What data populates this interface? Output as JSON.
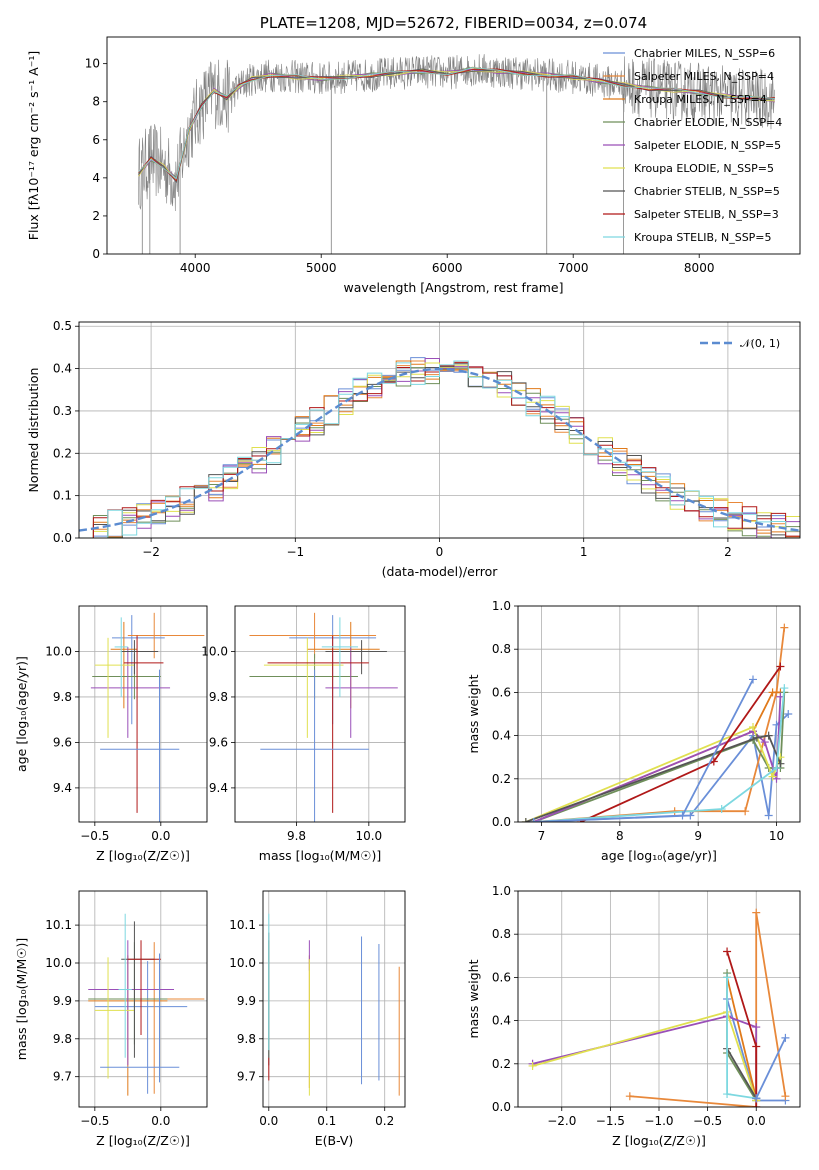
{
  "colors": [
    "#6a8fd8",
    "#e8883a",
    "#e07a1a",
    "#6f8f5a",
    "#9a4fb8",
    "#e0e050",
    "#555555",
    "#b01818",
    "#7dd8e0"
  ],
  "chart_data": [
    {
      "id": "spectrum",
      "type": "line",
      "title": "PLATE=1208, MJD=52672, FIBERID=0034, z=0.074",
      "xlabel": "wavelength [Angstrom, rest frame]",
      "ylabel": "Flux [fλ10⁻¹⁷ erg cm⁻² s⁻¹ A⁻¹]",
      "xlim": [
        3300,
        8800
      ],
      "ylim": [
        0,
        11.4
      ],
      "xticks": [
        "4000",
        "5000",
        "6000",
        "7000",
        "8000"
      ],
      "yticks": [
        "0",
        "2",
        "4",
        "6",
        "8",
        "10"
      ],
      "legend_position": "upper-right",
      "legend": [
        "Chabrier MILES, N_SSP=6",
        "Salpeter MILES, N_SSP=4",
        "Kroupa MILES, N_SSP=4",
        "Chabrier ELODIE, N_SSP=4",
        "Salpeter ELODIE, N_SSP=5",
        "Kroupa ELODIE, N_SSP=5",
        "Chabrier STELIB, N_SSP=5",
        "Salpeter STELIB, N_SSP=3",
        "Kroupa STELIB, N_SSP=5"
      ],
      "data_color": "#808080",
      "model_x": [
        3550,
        3650,
        3750,
        3850,
        3950,
        4050,
        4150,
        4250,
        4350,
        4450,
        4600,
        4800,
        5000,
        5200,
        5400,
        5600,
        5800,
        6000,
        6200,
        6400,
        6600,
        6800,
        7000,
        7200,
        7400,
        7600,
        7800,
        8000,
        8200,
        8400,
        8600
      ],
      "model_y": [
        4.2,
        5.0,
        4.6,
        3.9,
        6.5,
        7.8,
        8.6,
        8.2,
        8.8,
        9.2,
        9.4,
        9.3,
        9.2,
        9.3,
        9.4,
        9.5,
        9.6,
        9.5,
        9.7,
        9.6,
        9.5,
        9.4,
        9.3,
        9.1,
        8.9,
        8.7,
        8.6,
        8.5,
        8.3,
        8.2,
        8.1
      ]
    },
    {
      "id": "residuals",
      "type": "histogram",
      "xlabel": "(data-model)/error",
      "ylabel": "Normed distribution",
      "xlim": [
        -2.5,
        2.5
      ],
      "ylim": [
        0,
        0.51
      ],
      "xticks": [
        "−2",
        "−1",
        "0",
        "1",
        "2"
      ],
      "yticks": [
        "0.0",
        "0.1",
        "0.2",
        "0.3",
        "0.4",
        "0.5"
      ],
      "legend": [
        "𝒩(0, 1)"
      ],
      "reference_curve": "normal(0,1)",
      "bin_width": 0.1
    },
    {
      "id": "age-vs-Z",
      "type": "errorbar",
      "xlabel": "Z [log₁₀(Z/Z☉)]",
      "ylabel": "age  [log₁₀(age/yr)]",
      "xlim": [
        -0.62,
        0.35
      ],
      "ylim": [
        9.25,
        10.2
      ],
      "xticks": [
        "−0.5",
        "0.0"
      ],
      "yticks": [
        "9.4",
        "9.6",
        "9.8",
        "10.0"
      ],
      "points": [
        {
          "x": -0.22,
          "y": 10.06,
          "xerr": [
            0.15,
            0.25
          ],
          "yerr": [
            0.38,
            0.1
          ]
        },
        {
          "x": -0.05,
          "y": 10.07,
          "xerr": [
            0.2,
            0.38
          ],
          "yerr": [
            0.1,
            0.1
          ]
        },
        {
          "x": -0.28,
          "y": 10.01,
          "xerr": [
            0.1,
            0.1
          ],
          "yerr": [
            0.26,
            0.12
          ]
        },
        {
          "x": -0.2,
          "y": 9.89,
          "xerr": [
            0.32,
            0.2
          ],
          "yerr": [
            0.1,
            0.1
          ]
        },
        {
          "x": -0.25,
          "y": 9.84,
          "xerr": [
            0.28,
            0.32
          ],
          "yerr": [
            0.22,
            0.18
          ]
        },
        {
          "x": -0.4,
          "y": 9.94,
          "xerr": [
            0.1,
            0.2
          ],
          "yerr": [
            0.32,
            0.12
          ]
        },
        {
          "x": -0.2,
          "y": 10.0,
          "xerr": [
            0.1,
            0.18
          ],
          "yerr": [
            0.1,
            0.05
          ]
        },
        {
          "x": -0.18,
          "y": 9.95,
          "xerr": [
            0.1,
            0.2
          ],
          "yerr": [
            0.66,
            0.12
          ]
        },
        {
          "x": -0.3,
          "y": 10.02,
          "xerr": [
            0.05,
            0.05
          ],
          "yerr": [
            0.22,
            0.13
          ]
        },
        {
          "x": -0.01,
          "y": 9.57,
          "xerr": [
            0.45,
            0.15
          ],
          "yerr": [
            0.35,
            0.35
          ]
        }
      ]
    },
    {
      "id": "age-vs-mass",
      "type": "errorbar",
      "xlabel": "mass [log₁₀(M/M☉)]",
      "ylabel": "",
      "xlim": [
        9.63,
        10.1
      ],
      "ylim": [
        9.25,
        10.2
      ],
      "xticks": [
        "9.8",
        "10.0"
      ],
      "yticks": [
        "9.4",
        "9.6",
        "9.8",
        "10.0"
      ],
      "points": [
        {
          "x": 9.9,
          "y": 10.06,
          "xerr": [
            0.12,
            0.12
          ],
          "yerr": [
            0.38,
            0.1
          ]
        },
        {
          "x": 9.85,
          "y": 10.07,
          "xerr": [
            0.18,
            0.17
          ],
          "yerr": [
            0.1,
            0.1
          ]
        },
        {
          "x": 9.95,
          "y": 10.01,
          "xerr": [
            0.12,
            0.08
          ],
          "yerr": [
            0.26,
            0.12
          ]
        },
        {
          "x": 9.85,
          "y": 9.89,
          "xerr": [
            0.18,
            0.12
          ],
          "yerr": [
            0.1,
            0.1
          ]
        },
        {
          "x": 9.95,
          "y": 9.84,
          "xerr": [
            0.07,
            0.13
          ],
          "yerr": [
            0.22,
            0.18
          ]
        },
        {
          "x": 9.83,
          "y": 9.94,
          "xerr": [
            0.12,
            0.1
          ],
          "yerr": [
            0.32,
            0.12
          ]
        },
        {
          "x": 9.98,
          "y": 10.0,
          "xerr": [
            0.1,
            0.07
          ],
          "yerr": [
            0.1,
            0.05
          ]
        },
        {
          "x": 9.9,
          "y": 9.95,
          "xerr": [
            0.18,
            0.1
          ],
          "yerr": [
            0.66,
            0.12
          ]
        },
        {
          "x": 9.92,
          "y": 10.02,
          "xerr": [
            0.05,
            0.05
          ],
          "yerr": [
            0.22,
            0.13
          ]
        },
        {
          "x": 9.85,
          "y": 9.57,
          "xerr": [
            0.15,
            0.15
          ],
          "yerr": [
            0.35,
            0.35
          ]
        }
      ]
    },
    {
      "id": "massweight-vs-age",
      "type": "line",
      "xlabel": "age  [log₁₀(age/yr)]",
      "ylabel": "mass weight",
      "xlim": [
        6.7,
        10.3
      ],
      "ylim": [
        0,
        1.0
      ],
      "xticks": [
        "7",
        "8",
        "9",
        "10"
      ],
      "yticks": [
        "0.0",
        "0.2",
        "0.4",
        "0.6",
        "0.8",
        "1.0"
      ],
      "series": [
        {
          "values": [
            [
              6.9,
              0.0
            ],
            [
              8.9,
              0.03
            ],
            [
              9.7,
              0.4
            ],
            [
              9.9,
              0.03
            ],
            [
              10.0,
              0.45
            ],
            [
              10.15,
              0.5
            ]
          ]
        },
        {
          "values": [
            [
              6.9,
              0.0
            ],
            [
              8.7,
              0.05
            ],
            [
              9.6,
              0.05
            ],
            [
              10.0,
              0.6
            ],
            [
              10.1,
              0.9
            ]
          ]
        },
        {
          "values": [
            [
              6.9,
              0.0
            ],
            [
              9.7,
              0.42
            ],
            [
              9.95,
              0.6
            ],
            [
              10.05,
              0.6
            ]
          ]
        },
        {
          "values": [
            [
              6.9,
              0.0
            ],
            [
              9.7,
              0.38
            ],
            [
              9.9,
              0.25
            ],
            [
              10.05,
              0.25
            ],
            [
              10.1,
              0.6
            ]
          ]
        },
        {
          "values": [
            [
              6.9,
              0.0
            ],
            [
              9.7,
              0.42
            ],
            [
              9.85,
              0.37
            ],
            [
              10.0,
              0.2
            ],
            [
              10.05,
              0.58
            ]
          ]
        },
        {
          "values": [
            [
              6.8,
              0.0
            ],
            [
              9.7,
              0.44
            ],
            [
              9.95,
              0.21
            ],
            [
              10.05,
              0.3
            ]
          ]
        },
        {
          "values": [
            [
              6.8,
              0.0
            ],
            [
              9.75,
              0.39
            ],
            [
              9.9,
              0.4
            ],
            [
              10.05,
              0.27
            ]
          ]
        },
        {
          "values": [
            [
              7.5,
              0.0
            ],
            [
              9.2,
              0.28
            ],
            [
              10.05,
              0.72
            ]
          ]
        },
        {
          "values": [
            [
              6.9,
              0.0
            ],
            [
              9.3,
              0.06
            ],
            [
              10.0,
              0.25
            ],
            [
              10.1,
              0.62
            ]
          ]
        },
        {
          "values": [
            [
              6.9,
              0.0
            ],
            [
              8.8,
              0.03
            ],
            [
              9.7,
              0.66
            ]
          ]
        }
      ]
    },
    {
      "id": "mass-vs-Z",
      "type": "errorbar",
      "xlabel": "Z [log₁₀(Z/Z☉)]",
      "ylabel": "mass [log₁₀(M/M☉)]",
      "xlim": [
        -0.62,
        0.35
      ],
      "ylim": [
        9.62,
        10.19
      ],
      "xticks": [
        "−0.5",
        "0.0"
      ],
      "yticks": [
        "9.7",
        "9.8",
        "9.9",
        "10.0",
        "10.1"
      ],
      "points": [
        {
          "x": -0.1,
          "y": 9.885,
          "xerr": [
            0.4,
            0.3
          ],
          "yerr": [
            0.23,
            0.12
          ]
        },
        {
          "x": -0.05,
          "y": 9.905,
          "xerr": [
            0.4,
            0.38
          ],
          "yerr": [
            0.25,
            0.15
          ]
        },
        {
          "x": -0.25,
          "y": 9.9,
          "xerr": [
            0.3,
            0.3
          ],
          "yerr": [
            0.25,
            0.12
          ]
        },
        {
          "x": -0.2,
          "y": 9.905,
          "xerr": [
            0.35,
            0.25
          ],
          "yerr": [
            0.12,
            0.15
          ]
        },
        {
          "x": -0.25,
          "y": 9.93,
          "xerr": [
            0.3,
            0.35
          ],
          "yerr": [
            0.2,
            0.13
          ]
        },
        {
          "x": -0.4,
          "y": 9.875,
          "xerr": [
            0.1,
            0.2
          ],
          "yerr": [
            0.18,
            0.14
          ]
        },
        {
          "x": -0.2,
          "y": 10.01,
          "xerr": [
            0.1,
            0.15
          ],
          "yerr": [
            0.26,
            0.1
          ]
        },
        {
          "x": -0.15,
          "y": 10.01,
          "xerr": [
            0.1,
            0.15
          ],
          "yerr": [
            0.2,
            0.05
          ]
        },
        {
          "x": -0.27,
          "y": 9.93,
          "xerr": [
            0.05,
            0.05
          ],
          "yerr": [
            0.18,
            0.2
          ]
        },
        {
          "x": -0.01,
          "y": 9.725,
          "xerr": [
            0.45,
            0.15
          ],
          "yerr": [
            0.04,
            0.3
          ]
        }
      ]
    },
    {
      "id": "mass-vs-ebv",
      "type": "errorbar",
      "xlabel": "E(B-V)",
      "ylabel": "",
      "xlim": [
        -0.01,
        0.235
      ],
      "ylim": [
        9.62,
        10.19
      ],
      "xticks": [
        "0.0",
        "0.1",
        "0.2"
      ],
      "yticks": [
        "9.7",
        "9.8",
        "9.9",
        "10.0",
        "10.1"
      ],
      "points": [
        {
          "x": 0.16,
          "y": 9.9,
          "xerr": [
            0,
            0
          ],
          "yerr": [
            0.22,
            0.17
          ]
        },
        {
          "x": 0.225,
          "y": 9.84,
          "xerr": [
            0,
            0
          ],
          "yerr": [
            0.19,
            0.15
          ]
        },
        {
          "x": 0.07,
          "y": 9.9,
          "xerr": [
            0,
            0
          ],
          "yerr": [
            0.23,
            0.12
          ]
        },
        {
          "x": 0.0,
          "y": 9.95,
          "xerr": [
            0,
            0
          ],
          "yerr": [
            0.2,
            0.11
          ]
        },
        {
          "x": 0.07,
          "y": 10.02,
          "xerr": [
            0,
            0
          ],
          "yerr": [
            0.04,
            0.04
          ]
        },
        {
          "x": 0.07,
          "y": 9.9,
          "xerr": [
            0,
            0
          ],
          "yerr": [
            0.25,
            0.11
          ]
        },
        {
          "x": 0.0,
          "y": 9.95,
          "xerr": [
            0,
            0
          ],
          "yerr": [
            0.22,
            0.13
          ]
        },
        {
          "x": 0.0,
          "y": 9.72,
          "xerr": [
            0,
            0
          ],
          "yerr": [
            0.03,
            0.03
          ]
        },
        {
          "x": 0.0,
          "y": 9.95,
          "xerr": [
            0,
            0
          ],
          "yerr": [
            0.18,
            0.18
          ]
        },
        {
          "x": 0.19,
          "y": 9.85,
          "xerr": [
            0,
            0
          ],
          "yerr": [
            0.16,
            0.2
          ]
        }
      ]
    },
    {
      "id": "massweight-vs-Z",
      "type": "line",
      "xlabel": "Z [log₁₀(Z/Z☉)]",
      "ylabel": "mass weight",
      "xlim": [
        -2.45,
        0.45
      ],
      "ylim": [
        0,
        1.0
      ],
      "xticks": [
        "−2.0",
        "−1.5",
        "−1.0",
        "−0.5",
        "0.0"
      ],
      "yticks": [
        "0.0",
        "0.2",
        "0.4",
        "0.6",
        "0.8",
        "1.0"
      ],
      "series": [
        {
          "values": [
            [
              -0.3,
              0.5
            ],
            [
              0.0,
              0.03
            ],
            [
              0.3,
              0.03
            ]
          ]
        },
        {
          "values": [
            [
              -1.3,
              0.05
            ],
            [
              0.0,
              0.0
            ],
            [
              0.0,
              0.9
            ],
            [
              0.3,
              0.05
            ]
          ]
        },
        {
          "values": [
            [
              -0.3,
              0.6
            ],
            [
              0.0,
              0.04
            ]
          ]
        },
        {
          "values": [
            [
              -0.3,
              0.62
            ],
            [
              -0.3,
              0.25
            ],
            [
              0.0,
              0.03
            ]
          ]
        },
        {
          "values": [
            [
              -2.3,
              0.2
            ],
            [
              -0.3,
              0.42
            ],
            [
              0.0,
              0.37
            ],
            [
              0.0,
              0.04
            ]
          ]
        },
        {
          "values": [
            [
              -2.3,
              0.19
            ],
            [
              -0.3,
              0.44
            ],
            [
              0.0,
              0.03
            ]
          ]
        },
        {
          "values": [
            [
              -0.3,
              0.27
            ],
            [
              0.0,
              0.04
            ]
          ]
        },
        {
          "values": [
            [
              -0.3,
              0.72
            ],
            [
              0.0,
              0.28
            ],
            [
              0.0,
              0.0
            ]
          ]
        },
        {
          "values": [
            [
              -0.3,
              0.6
            ],
            [
              -0.3,
              0.06
            ],
            [
              0.0,
              0.04
            ]
          ]
        },
        {
          "values": [
            [
              0.0,
              0.04
            ],
            [
              0.3,
              0.32
            ]
          ]
        }
      ]
    }
  ]
}
